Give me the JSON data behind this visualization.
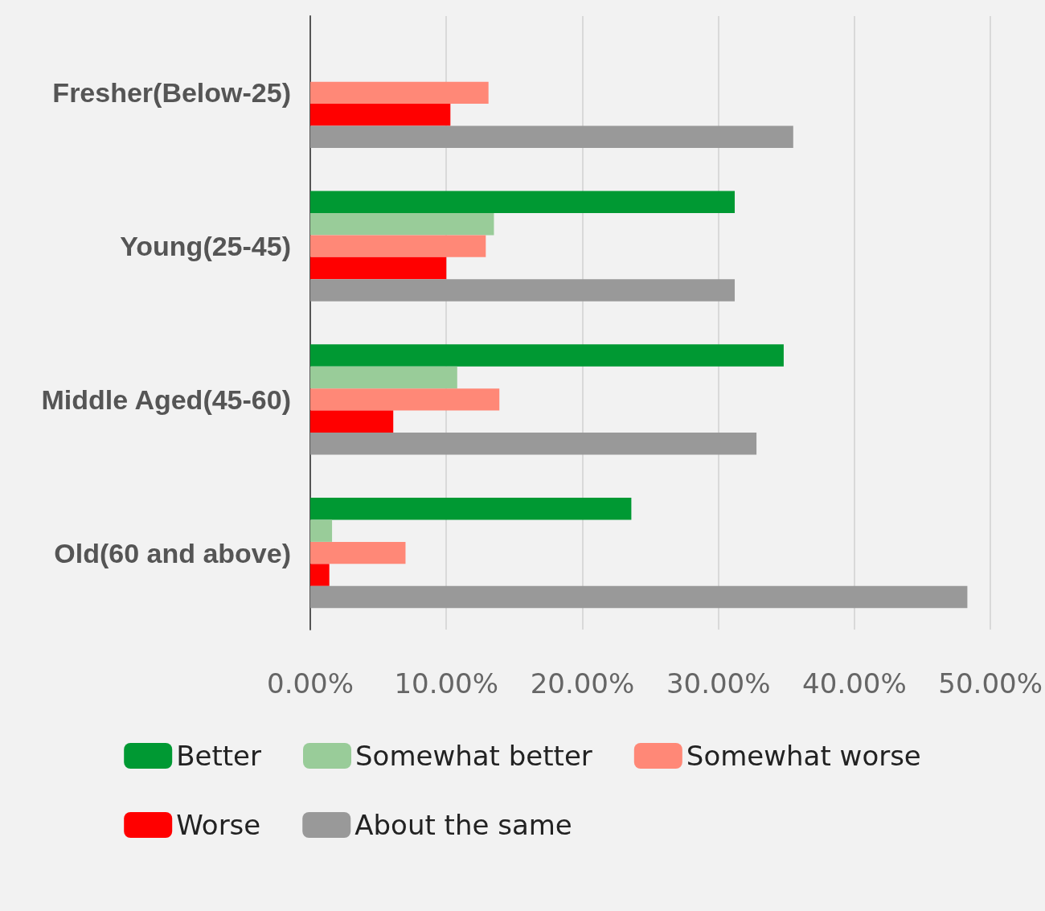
{
  "chart_data": {
    "type": "bar",
    "orientation": "horizontal",
    "categories": [
      "Fresher(Below-25)",
      "Young(25-45)",
      "Middle Aged(45-60)",
      "Old(60 and above)"
    ],
    "series": [
      {
        "name": "Better",
        "color": "#009933",
        "values": [
          null,
          31.2,
          34.8,
          23.6
        ]
      },
      {
        "name": "Somewhat better",
        "color": "#99cc99",
        "values": [
          null,
          13.5,
          10.8,
          1.6
        ]
      },
      {
        "name": "Somewhat worse",
        "color": "#ff8877",
        "values": [
          13.1,
          12.9,
          13.9,
          7.0
        ]
      },
      {
        "name": "Worse",
        "color": "#ff0000",
        "values": [
          10.3,
          10.0,
          6.1,
          1.4
        ]
      },
      {
        "name": "About the same",
        "color": "#999999",
        "values": [
          35.5,
          31.2,
          32.8,
          48.3
        ]
      }
    ],
    "xlim": [
      0,
      50
    ],
    "xticks": [
      {
        "value": 0,
        "label": "0.00%"
      },
      {
        "value": 10,
        "label": "10.00%"
      },
      {
        "value": 20,
        "label": "20.00%"
      },
      {
        "value": 30,
        "label": "30.00%"
      },
      {
        "value": 40,
        "label": "40.00%"
      },
      {
        "value": 50,
        "label": "50.00%"
      }
    ],
    "grid": "x",
    "legend": "bottom"
  }
}
